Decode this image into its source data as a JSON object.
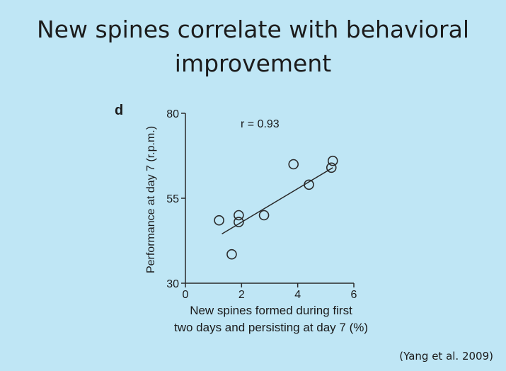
{
  "slide": {
    "title_line1": "New spines correlate with behavioral",
    "title_line2": "improvement",
    "citation": "(Yang et al. 2009)"
  },
  "chart_data": {
    "type": "scatter",
    "panel_label": "d",
    "xlabel_line1": "New spines formed during first",
    "xlabel_line2": "two days and persisting at day 7 (%)",
    "ylabel": "Performance at day 7 (r.p.m.)",
    "xlim": [
      0,
      6
    ],
    "ylim": [
      30,
      80
    ],
    "x_ticks": [
      0,
      2,
      4,
      6
    ],
    "y_ticks": [
      30,
      55,
      80
    ],
    "annotation": "r = 0.93",
    "points": [
      {
        "x": 1.2,
        "y": 48.5
      },
      {
        "x": 1.65,
        "y": 38.5
      },
      {
        "x": 1.9,
        "y": 50
      },
      {
        "x": 1.9,
        "y": 48
      },
      {
        "x": 2.8,
        "y": 50
      },
      {
        "x": 3.85,
        "y": 65
      },
      {
        "x": 4.4,
        "y": 59
      },
      {
        "x": 5.2,
        "y": 64
      },
      {
        "x": 5.25,
        "y": 66
      }
    ],
    "fit_line": {
      "x1": 1.3,
      "y1": 44.5,
      "x2": 5.25,
      "y2": 64
    },
    "grid": false,
    "colors": {
      "marker": "#2a2a2a",
      "line": "#2a2a2a",
      "background": "#bfe6f5"
    }
  }
}
